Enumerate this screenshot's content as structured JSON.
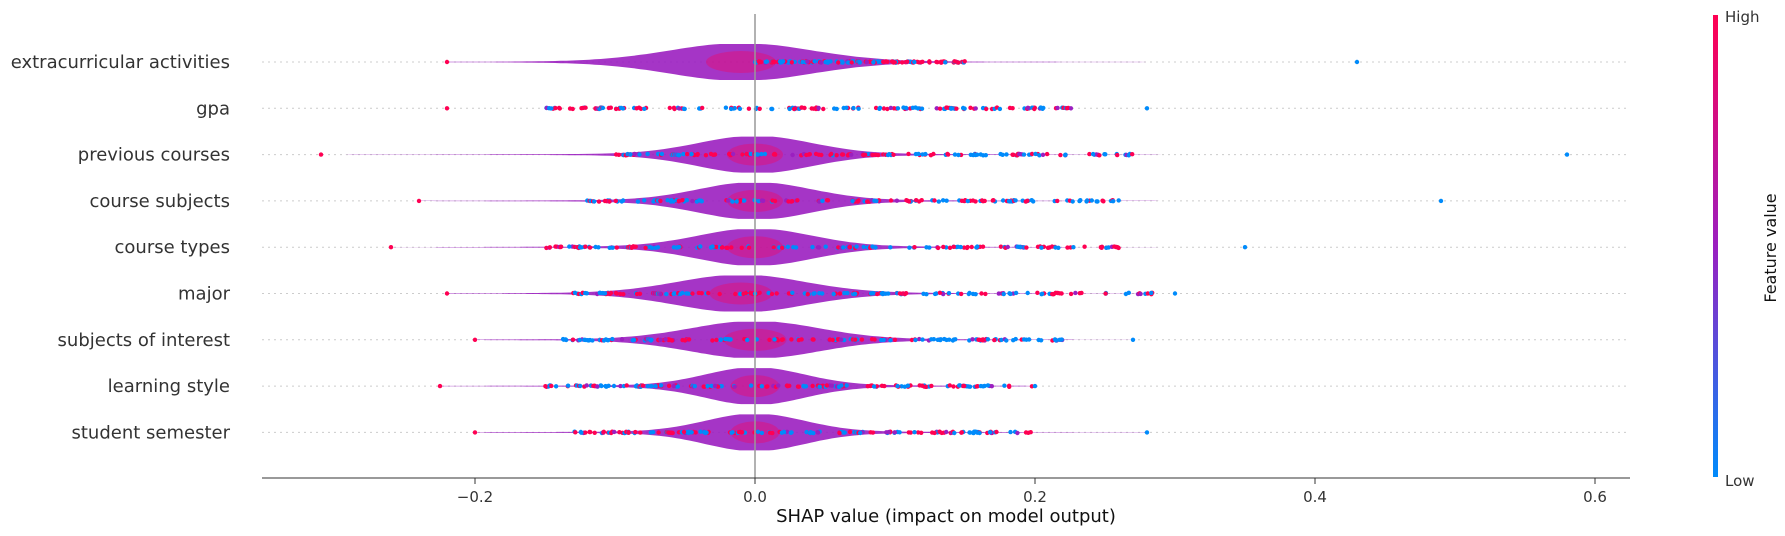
{
  "chart_data": {
    "type": "violin",
    "xlabel": "SHAP value (impact on model output)",
    "xlim": [
      -0.35,
      0.63
    ],
    "x_ticks": [
      -0.2,
      0.0,
      0.2,
      0.4,
      0.6
    ],
    "x_tick_labels": [
      "−0.2",
      "0.0",
      "0.2",
      "0.4",
      "0.6"
    ],
    "features": [
      {
        "name": "extracurricular activities",
        "range": [
          -0.22,
          0.43
        ],
        "peak": -0.01,
        "width": 0.05,
        "hot": [
          0.0,
          0.15
        ]
      },
      {
        "name": "gpa",
        "range": [
          -0.22,
          0.28
        ],
        "peak": 0.0,
        "width": 0.0,
        "hot": [
          -0.15,
          0.23
        ]
      },
      {
        "name": "previous courses",
        "range": [
          -0.31,
          0.58
        ],
        "peak": 0.0,
        "width": 0.04,
        "hot": [
          -0.1,
          0.27
        ]
      },
      {
        "name": "course subjects",
        "range": [
          -0.24,
          0.49
        ],
        "peak": 0.0,
        "width": 0.04,
        "hot": [
          -0.12,
          0.26
        ]
      },
      {
        "name": "course types",
        "range": [
          -0.26,
          0.35
        ],
        "peak": 0.0,
        "width": 0.04,
        "hot": [
          -0.15,
          0.27
        ]
      },
      {
        "name": "major",
        "range": [
          -0.22,
          0.3
        ],
        "peak": -0.01,
        "width": 0.045,
        "hot": [
          -0.14,
          0.29
        ]
      },
      {
        "name": "subjects of interest",
        "range": [
          -0.2,
          0.27
        ],
        "peak": 0.0,
        "width": 0.045,
        "hot": [
          -0.14,
          0.22
        ]
      },
      {
        "name": "learning style",
        "range": [
          -0.225,
          0.2
        ],
        "peak": 0.0,
        "width": 0.035,
        "hot": [
          -0.15,
          0.2
        ]
      },
      {
        "name": "student semester",
        "range": [
          -0.2,
          0.28
        ],
        "peak": 0.0,
        "width": 0.035,
        "hot": [
          -0.13,
          0.2
        ]
      }
    ],
    "colorbar": {
      "title": "Feature value",
      "high_label": "High",
      "low_label": "Low"
    },
    "colors": {
      "low": "#008bfb",
      "mid": "#9b1fc0",
      "high": "#ff0052"
    },
    "grid": false,
    "legend": "colorbar-right"
  }
}
